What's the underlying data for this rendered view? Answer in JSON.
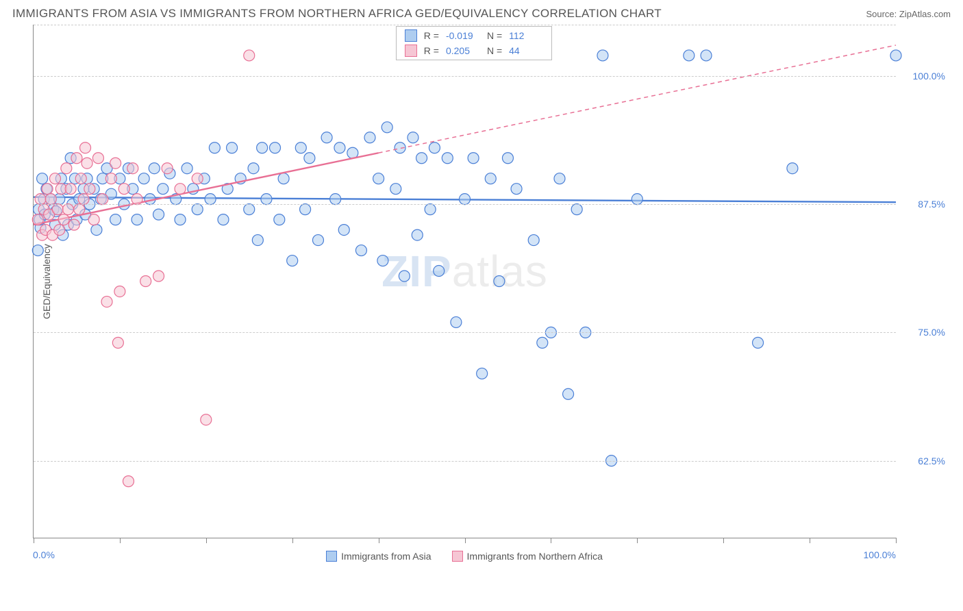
{
  "title": "IMMIGRANTS FROM ASIA VS IMMIGRANTS FROM NORTHERN AFRICA GED/EQUIVALENCY CORRELATION CHART",
  "source": "Source: ZipAtlas.com",
  "ylabel": "GED/Equivalency",
  "watermark_a": "ZIP",
  "watermark_b": "atlas",
  "chart": {
    "type": "scatter",
    "background_color": "#ffffff",
    "grid_color": "#cccccc",
    "axis_color": "#888888",
    "xlim": [
      0,
      100
    ],
    "ylim": [
      55,
      105
    ],
    "xtick_positions": [
      0,
      10,
      20,
      30,
      40,
      50,
      60,
      70,
      80,
      90,
      100
    ],
    "xtick_labels_shown": {
      "0": "0.0%",
      "100": "100.0%"
    },
    "ytick_positions": [
      62.5,
      75,
      87.5,
      100,
      105
    ],
    "ytick_labels": {
      "62.5": "62.5%",
      "75": "75.0%",
      "87.5": "87.5%",
      "100": "100.0%"
    },
    "marker_radius": 8,
    "marker_stroke_width": 1.2,
    "trend_line_width": 2.4,
    "dash_pattern": "6,5"
  },
  "series": [
    {
      "id": "asia",
      "label": "Immigrants from Asia",
      "fill": "#aecdf0",
      "stroke": "#4a7fd6",
      "fill_opacity": 0.55,
      "R": "-0.019",
      "N": "112",
      "trend": {
        "x1": 0,
        "y1": 88.2,
        "x2": 100,
        "y2": 87.7,
        "solid_until_x": 100
      },
      "points": [
        [
          0.6,
          87.0
        ],
        [
          0.8,
          85.2
        ],
        [
          0.7,
          86.0
        ],
        [
          0.5,
          83.0
        ],
        [
          1.2,
          88.0
        ],
        [
          1.5,
          89.0
        ],
        [
          1.0,
          90.0
        ],
        [
          1.3,
          86.5
        ],
        [
          2.0,
          88.0
        ],
        [
          2.3,
          87.0
        ],
        [
          2.5,
          85.5
        ],
        [
          2.6,
          86.8
        ],
        [
          3.0,
          88.0
        ],
        [
          3.2,
          90.0
        ],
        [
          3.4,
          84.5
        ],
        [
          3.8,
          89.0
        ],
        [
          4.0,
          85.5
        ],
        [
          4.5,
          87.5
        ],
        [
          4.8,
          90.0
        ],
        [
          5.0,
          86.0
        ],
        [
          5.3,
          88.0
        ],
        [
          5.8,
          89.0
        ],
        [
          6.0,
          86.5
        ],
        [
          6.2,
          90.0
        ],
        [
          6.5,
          87.5
        ],
        [
          7.0,
          89.0
        ],
        [
          7.3,
          85.0
        ],
        [
          7.8,
          88.0
        ],
        [
          8.0,
          90.0
        ],
        [
          8.5,
          91.0
        ],
        [
          9.0,
          88.5
        ],
        [
          9.5,
          86.0
        ],
        [
          10.0,
          90.0
        ],
        [
          10.5,
          87.5
        ],
        [
          11.0,
          91.0
        ],
        [
          11.5,
          89.0
        ],
        [
          12.0,
          86.0
        ],
        [
          12.8,
          90.0
        ],
        [
          13.5,
          88.0
        ],
        [
          14.0,
          91.0
        ],
        [
          14.5,
          86.5
        ],
        [
          15.0,
          89.0
        ],
        [
          15.8,
          90.5
        ],
        [
          16.5,
          88.0
        ],
        [
          17.0,
          86.0
        ],
        [
          17.8,
          91.0
        ],
        [
          18.5,
          89.0
        ],
        [
          19.0,
          87.0
        ],
        [
          19.8,
          90.0
        ],
        [
          20.5,
          88.0
        ],
        [
          21.0,
          93.0
        ],
        [
          22.0,
          86.0
        ],
        [
          22.5,
          89.0
        ],
        [
          23.0,
          93.0
        ],
        [
          24.0,
          90.0
        ],
        [
          25.0,
          87.0
        ],
        [
          25.5,
          91.0
        ],
        [
          26.0,
          84.0
        ],
        [
          26.5,
          93.0
        ],
        [
          27.0,
          88.0
        ],
        [
          28.0,
          93.0
        ],
        [
          28.5,
          86.0
        ],
        [
          29.0,
          90.0
        ],
        [
          30.0,
          82.0
        ],
        [
          31.0,
          93.0
        ],
        [
          31.5,
          87.0
        ],
        [
          32.0,
          92.0
        ],
        [
          33.0,
          84.0
        ],
        [
          34.0,
          94.0
        ],
        [
          35.0,
          88.0
        ],
        [
          35.5,
          93.0
        ],
        [
          36.0,
          85.0
        ],
        [
          37.0,
          92.5
        ],
        [
          38.0,
          83.0
        ],
        [
          39.0,
          94.0
        ],
        [
          40.0,
          90.0
        ],
        [
          40.5,
          82.0
        ],
        [
          41.0,
          95.0
        ],
        [
          42.0,
          89.0
        ],
        [
          42.5,
          93.0
        ],
        [
          43.0,
          80.5
        ],
        [
          44.0,
          94.0
        ],
        [
          44.5,
          84.5
        ],
        [
          45.0,
          92.0
        ],
        [
          46.0,
          87.0
        ],
        [
          47.0,
          81.0
        ],
        [
          48.0,
          92.0
        ],
        [
          49.0,
          76.0
        ],
        [
          50.0,
          88.0
        ],
        [
          51.0,
          92.0
        ],
        [
          52.0,
          71.0
        ],
        [
          53.0,
          90.0
        ],
        [
          54.0,
          80.0
        ],
        [
          55.0,
          92.0
        ],
        [
          56.0,
          89.0
        ],
        [
          58.0,
          84.0
        ],
        [
          59.0,
          74.0
        ],
        [
          60.0,
          75.0
        ],
        [
          61.0,
          90.0
        ],
        [
          62.0,
          69.0
        ],
        [
          63.0,
          87.0
        ],
        [
          64.0,
          75.0
        ],
        [
          66.0,
          102.0
        ],
        [
          67.0,
          62.5
        ],
        [
          70.0,
          88.0
        ],
        [
          76.0,
          102.0
        ],
        [
          78.0,
          102.0
        ],
        [
          84.0,
          74.0
        ],
        [
          88.0,
          91.0
        ],
        [
          100.0,
          102.0
        ],
        [
          4.3,
          92.0
        ],
        [
          46.5,
          93.0
        ]
      ]
    },
    {
      "id": "nafrica",
      "label": "Immigrants from Northern Africa",
      "fill": "#f6c6d4",
      "stroke": "#e86f94",
      "fill_opacity": 0.55,
      "R": "0.205",
      "N": "44",
      "trend": {
        "x1": 0,
        "y1": 85.5,
        "x2": 100,
        "y2": 103.0,
        "solid_until_x": 40
      },
      "points": [
        [
          0.5,
          86.0
        ],
        [
          0.8,
          88.0
        ],
        [
          1.0,
          84.5
        ],
        [
          1.2,
          87.0
        ],
        [
          1.4,
          85.0
        ],
        [
          1.6,
          89.0
        ],
        [
          1.8,
          86.5
        ],
        [
          2.0,
          88.0
        ],
        [
          2.2,
          84.5
        ],
        [
          2.5,
          90.0
        ],
        [
          2.8,
          87.0
        ],
        [
          3.0,
          85.0
        ],
        [
          3.2,
          89.0
        ],
        [
          3.5,
          86.0
        ],
        [
          3.8,
          91.0
        ],
        [
          4.0,
          87.0
        ],
        [
          4.3,
          89.0
        ],
        [
          4.7,
          85.5
        ],
        [
          5.0,
          92.0
        ],
        [
          5.3,
          87.0
        ],
        [
          5.5,
          90.0
        ],
        [
          5.8,
          88.0
        ],
        [
          6.0,
          93.0
        ],
        [
          6.5,
          89.0
        ],
        [
          7.0,
          86.0
        ],
        [
          7.5,
          92.0
        ],
        [
          8.0,
          88.0
        ],
        [
          8.5,
          78.0
        ],
        [
          9.0,
          90.0
        ],
        [
          9.5,
          91.5
        ],
        [
          10.0,
          79.0
        ],
        [
          10.5,
          89.0
        ],
        [
          11.0,
          60.5
        ],
        [
          11.5,
          91.0
        ],
        [
          12.0,
          88.0
        ],
        [
          13.0,
          80.0
        ],
        [
          14.5,
          80.5
        ],
        [
          15.5,
          91.0
        ],
        [
          17.0,
          89.0
        ],
        [
          19.0,
          90.0
        ],
        [
          20.0,
          66.5
        ],
        [
          25.0,
          102.0
        ],
        [
          9.8,
          74.0
        ],
        [
          6.2,
          91.5
        ]
      ]
    }
  ],
  "stats_labels": {
    "R": "R =",
    "N": "N ="
  }
}
